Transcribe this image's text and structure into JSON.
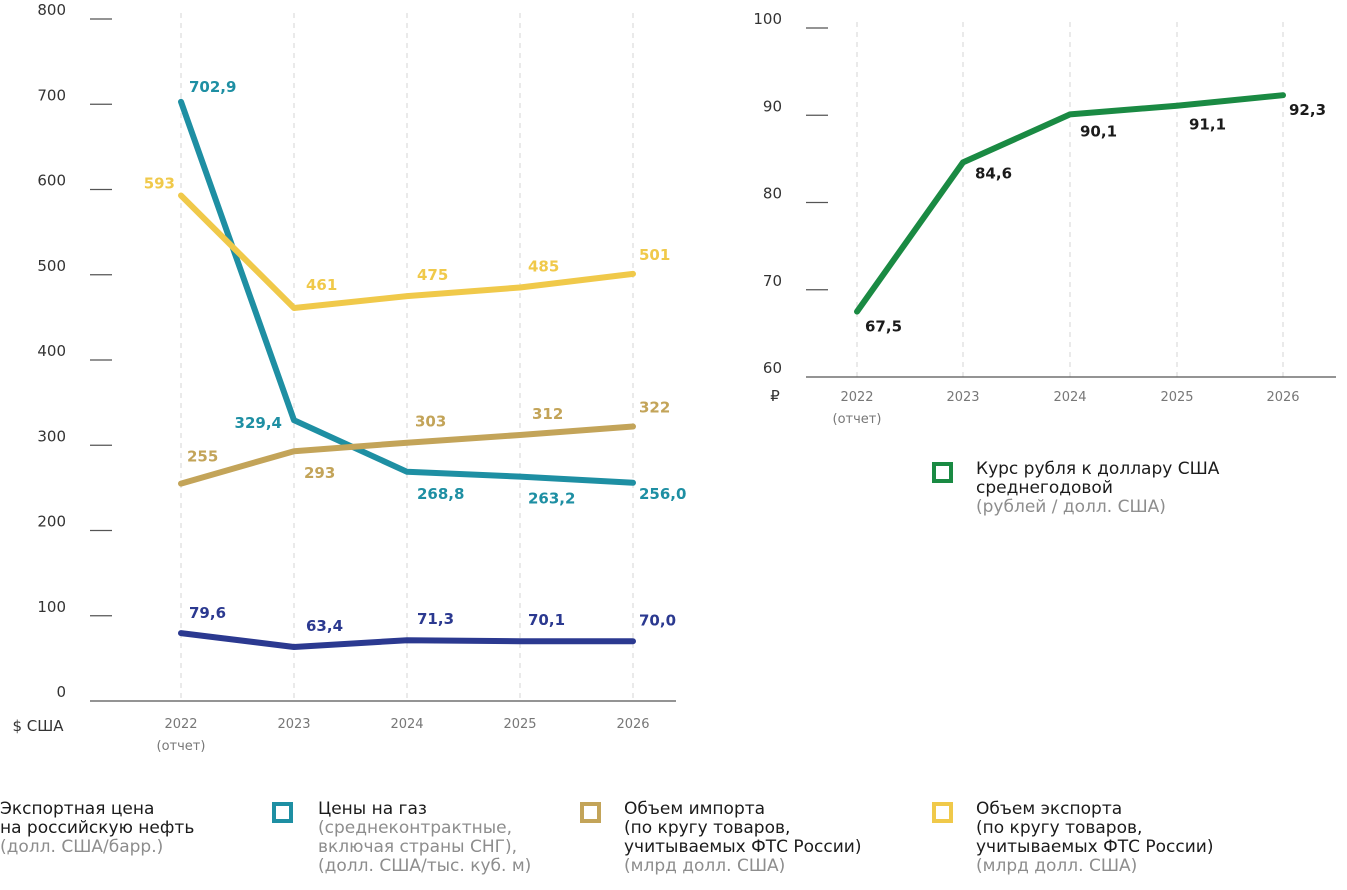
{
  "chart_data": [
    {
      "type": "line",
      "unit_label": "$ США",
      "categories": [
        "2022",
        "2023",
        "2024",
        "2025",
        "2026"
      ],
      "category_notes": [
        "(отчет)",
        "",
        "",
        "",
        ""
      ],
      "ylim": [
        0,
        800
      ],
      "yticks": [
        "0",
        "100",
        "200",
        "300",
        "400",
        "500",
        "600",
        "700",
        "800"
      ],
      "grid": "vertical-dashed",
      "series": [
        {
          "name": "Экспортная цена на российскую нефть",
          "sub": "(долл. США/барр.)",
          "color": "#2b3990",
          "values": [
            79.6,
            63.4,
            71.3,
            70.1,
            70.0
          ],
          "labels": [
            "79,6",
            "63,4",
            "71,3",
            "70,1",
            "70,0"
          ]
        },
        {
          "name": "Цены на газ",
          "sub": "(среднеконтрактные, включая страны СНГ), (долл. США/тыс. куб. м)",
          "color": "#1e8fa3",
          "values": [
            702.9,
            329.4,
            268.8,
            263.2,
            256.0
          ],
          "labels": [
            "702,9",
            "329,4",
            "268,8",
            "263,2",
            "256,0"
          ]
        },
        {
          "name": "Объем импорта (по кругу товаров, учитываемых ФТС России)",
          "sub": "(млрд долл. США)",
          "color": "#c3a459",
          "values": [
            255,
            293,
            303,
            312,
            322
          ],
          "labels": [
            "255",
            "293",
            "303",
            "312",
            "322"
          ]
        },
        {
          "name": "Объем экспорта (по кругу товаров, учитываемых ФТС России)",
          "sub": "(млрд долл. США)",
          "color": "#f0c94a",
          "values": [
            593,
            461,
            475,
            485,
            501
          ],
          "labels": [
            "593",
            "461",
            "475",
            "485",
            "501"
          ]
        }
      ]
    },
    {
      "type": "line",
      "unit_label": "₽",
      "categories": [
        "2022",
        "2023",
        "2024",
        "2025",
        "2026"
      ],
      "category_notes": [
        "(отчет)",
        "",
        "",
        "",
        ""
      ],
      "ylim": [
        60,
        100
      ],
      "yticks": [
        "60",
        "70",
        "80",
        "90",
        "100"
      ],
      "grid": "vertical-dashed",
      "series": [
        {
          "name": "Курс рубля к доллару США среднегодовой",
          "sub": "(рублей / долл. США)",
          "color": "#1a8a43",
          "values": [
            67.5,
            84.6,
            90.1,
            91.1,
            92.3
          ],
          "labels": [
            "67,5",
            "84,6",
            "90,1",
            "91,1",
            "92,3"
          ]
        }
      ]
    }
  ],
  "legend_items": [
    {
      "line1": "Экспортная цена",
      "line2": "на российскую нефть",
      "line3": "(долл. США/барр.)",
      "line4": "",
      "color": "#2b3990",
      "icon": "square-outline-icon"
    },
    {
      "line1": "Цены на газ",
      "line2": "(среднеконтрактные,",
      "line3": "включая страны СНГ),",
      "line4": "(долл. США/тыс. куб. м)",
      "color": "#1e8fa3",
      "icon": "square-outline-icon"
    },
    {
      "line1": "Объем импорта",
      "line2": "(по кругу товаров,",
      "line3": "учитываемых ФТС России)",
      "line4": "(млрд долл. США)",
      "color": "#c3a459",
      "icon": "square-outline-icon"
    },
    {
      "line1": "Объем экспорта",
      "line2": "(по кругу товаров,",
      "line3": "учитываемых ФТС России)",
      "line4": "(млрд долл. США)",
      "color": "#f0c94a",
      "icon": "square-outline-icon"
    }
  ],
  "right_legend": {
    "line1": "Курс рубля к доллару США",
    "line2": "среднегодовой",
    "line3": "(рублей / долл. США)",
    "color": "#1a8a43",
    "icon": "square-outline-icon"
  }
}
